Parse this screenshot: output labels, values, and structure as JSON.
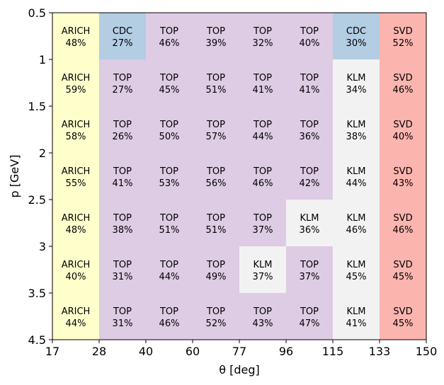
{
  "chart_data": {
    "type": "heatmap",
    "xlabel": "θ [deg]",
    "ylabel": "p [GeV]",
    "x_edges": [
      17,
      28,
      40,
      60,
      77,
      96,
      115,
      133,
      150
    ],
    "y_edges": [
      0.5,
      1,
      1.5,
      2,
      2.5,
      3,
      3.5,
      4.5
    ],
    "y_tick_labels": [
      "0.5",
      "1",
      "1.5",
      "2",
      "2.5",
      "3",
      "3.5",
      "4.5"
    ],
    "x_tick_labels": [
      "17",
      "28",
      "40",
      "60",
      "77",
      "96",
      "115",
      "133",
      "150"
    ],
    "detector_colors": {
      "ARICH": "#ffffcc",
      "CDC": "#b3cde3",
      "TOP": "#decbe4",
      "KLM": "#f2f2f2",
      "SVD": "#fbb4ae"
    },
    "rows": [
      [
        {
          "det": "ARICH",
          "pct": "48%"
        },
        {
          "det": "CDC",
          "pct": "27%"
        },
        {
          "det": "TOP",
          "pct": "46%"
        },
        {
          "det": "TOP",
          "pct": "39%"
        },
        {
          "det": "TOP",
          "pct": "32%"
        },
        {
          "det": "TOP",
          "pct": "40%"
        },
        {
          "det": "CDC",
          "pct": "30%"
        },
        {
          "det": "SVD",
          "pct": "52%"
        }
      ],
      [
        {
          "det": "ARICH",
          "pct": "59%"
        },
        {
          "det": "TOP",
          "pct": "27%"
        },
        {
          "det": "TOP",
          "pct": "45%"
        },
        {
          "det": "TOP",
          "pct": "51%"
        },
        {
          "det": "TOP",
          "pct": "41%"
        },
        {
          "det": "TOP",
          "pct": "41%"
        },
        {
          "det": "KLM",
          "pct": "34%"
        },
        {
          "det": "SVD",
          "pct": "46%"
        }
      ],
      [
        {
          "det": "ARICH",
          "pct": "58%"
        },
        {
          "det": "TOP",
          "pct": "26%"
        },
        {
          "det": "TOP",
          "pct": "50%"
        },
        {
          "det": "TOP",
          "pct": "57%"
        },
        {
          "det": "TOP",
          "pct": "44%"
        },
        {
          "det": "TOP",
          "pct": "36%"
        },
        {
          "det": "KLM",
          "pct": "38%"
        },
        {
          "det": "SVD",
          "pct": "40%"
        }
      ],
      [
        {
          "det": "ARICH",
          "pct": "55%"
        },
        {
          "det": "TOP",
          "pct": "41%"
        },
        {
          "det": "TOP",
          "pct": "53%"
        },
        {
          "det": "TOP",
          "pct": "56%"
        },
        {
          "det": "TOP",
          "pct": "46%"
        },
        {
          "det": "TOP",
          "pct": "42%"
        },
        {
          "det": "KLM",
          "pct": "44%"
        },
        {
          "det": "SVD",
          "pct": "43%"
        }
      ],
      [
        {
          "det": "ARICH",
          "pct": "48%"
        },
        {
          "det": "TOP",
          "pct": "38%"
        },
        {
          "det": "TOP",
          "pct": "51%"
        },
        {
          "det": "TOP",
          "pct": "51%"
        },
        {
          "det": "TOP",
          "pct": "37%"
        },
        {
          "det": "KLM",
          "pct": "36%"
        },
        {
          "det": "KLM",
          "pct": "46%"
        },
        {
          "det": "SVD",
          "pct": "46%"
        }
      ],
      [
        {
          "det": "ARICH",
          "pct": "40%"
        },
        {
          "det": "TOP",
          "pct": "31%"
        },
        {
          "det": "TOP",
          "pct": "44%"
        },
        {
          "det": "TOP",
          "pct": "49%"
        },
        {
          "det": "KLM",
          "pct": "37%"
        },
        {
          "det": "TOP",
          "pct": "37%"
        },
        {
          "det": "KLM",
          "pct": "45%"
        },
        {
          "det": "SVD",
          "pct": "45%"
        }
      ],
      [
        {
          "det": "ARICH",
          "pct": "44%"
        },
        {
          "det": "TOP",
          "pct": "31%"
        },
        {
          "det": "TOP",
          "pct": "46%"
        },
        {
          "det": "TOP",
          "pct": "52%"
        },
        {
          "det": "TOP",
          "pct": "43%"
        },
        {
          "det": "TOP",
          "pct": "47%"
        },
        {
          "det": "KLM",
          "pct": "41%"
        },
        {
          "det": "SVD",
          "pct": "45%"
        }
      ]
    ]
  }
}
